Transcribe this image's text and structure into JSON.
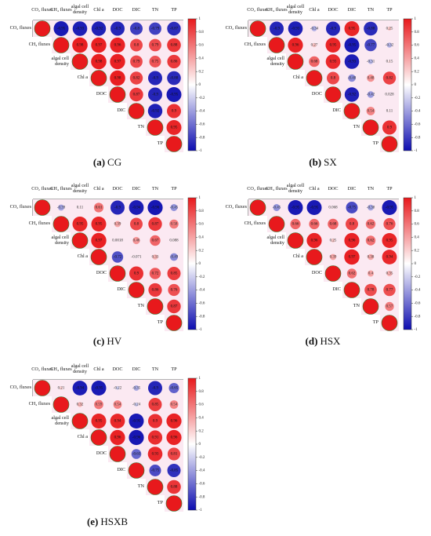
{
  "chart_data": [
    {
      "type": "corrplot",
      "panel": "(a)",
      "title": "CG",
      "variables": [
        "CO₂ fluxes",
        "CH₄ fluxes",
        "algal cell density",
        "Chl a",
        "DOC",
        "DIC",
        "TN",
        "TP"
      ],
      "values": [
        [
          1,
          -0.95,
          -0.93,
          -0.92,
          -0.9,
          -0.8,
          -0.79,
          -0.87
        ],
        [
          null,
          1,
          0.98,
          0.97,
          0.96,
          0.8,
          0.79,
          0.88
        ],
        [
          null,
          null,
          1,
          0.98,
          0.97,
          0.79,
          0.75,
          0.86
        ],
        [
          null,
          null,
          null,
          1,
          0.98,
          0.82,
          -0.9,
          -0.88
        ],
        [
          null,
          null,
          null,
          null,
          1,
          0.87,
          -0.9,
          -0.95
        ],
        [
          null,
          null,
          null,
          null,
          null,
          1,
          -0.92,
          0.9
        ],
        [
          null,
          null,
          null,
          null,
          null,
          null,
          1,
          0.95
        ],
        [
          null,
          null,
          null,
          null,
          null,
          null,
          null,
          1
        ]
      ],
      "clim": [
        -1,
        1
      ],
      "cticks": [
        1,
        0.8,
        0.6,
        0.4,
        0.2,
        0,
        -0.2,
        -0.4,
        -0.6,
        -0.8,
        -1
      ],
      "colors": {
        "positive": "#e8191c",
        "negative": "#0d0db0"
      }
    },
    {
      "type": "corrplot",
      "panel": "(b)",
      "title": "SX",
      "variables": [
        "CO₂ fluxes",
        "CH₄ fluxes",
        "algal cell density",
        "Chl a",
        "DOC",
        "DIC",
        "TN",
        "TP"
      ],
      "values": [
        [
          1,
          -0.9,
          -0.93,
          -0.34,
          -0.9,
          0.95,
          -0.88,
          0.25
        ],
        [
          null,
          1,
          0.96,
          0.27,
          0.95,
          -0.95,
          -0.77,
          -0.32
        ],
        [
          null,
          null,
          1,
          0.68,
          0.93,
          -0.93,
          -0.31,
          0.15
        ],
        [
          null,
          null,
          null,
          1,
          0.8,
          -0.48,
          0.48,
          0.82
        ],
        [
          null,
          null,
          null,
          null,
          1,
          -0.92,
          -0.42,
          0.028
        ],
        [
          null,
          null,
          null,
          null,
          null,
          1,
          0.54,
          0.11
        ],
        [
          null,
          null,
          null,
          null,
          null,
          null,
          1,
          0.9
        ],
        [
          null,
          null,
          null,
          null,
          null,
          null,
          null,
          1
        ]
      ],
      "clim": [
        -1,
        1
      ],
      "cticks": [
        1,
        0.8,
        0.6,
        0.4,
        0.2,
        0,
        -0.2,
        -0.4,
        -0.6,
        -0.8,
        -1
      ],
      "colors": {
        "positive": "#e8191c",
        "negative": "#0d0db0"
      }
    },
    {
      "type": "corrplot",
      "panel": "(c)",
      "title": "HV",
      "variables": [
        "CO₂ fluxes",
        "CH₄ fluxes",
        "algal cell density",
        "Chl a",
        "DOC",
        "DIC",
        "TN",
        "TP"
      ],
      "values": [
        [
          1,
          -0.39,
          0.11,
          0.61,
          -0.9,
          -0.94,
          -0.96,
          -0.45
        ],
        [
          null,
          1,
          0.95,
          0.95,
          0.39,
          0.8,
          0.87,
          0.58
        ],
        [
          null,
          null,
          1,
          0.97,
          0.0018,
          0.46,
          0.67,
          0.088
        ],
        [
          null,
          null,
          null,
          1,
          -0.72,
          -0.071,
          0.33,
          -0.49
        ],
        [
          null,
          null,
          null,
          null,
          1,
          0.9,
          0.72,
          0.85
        ],
        [
          null,
          null,
          null,
          null,
          null,
          1,
          0.86,
          0.76
        ],
        [
          null,
          null,
          null,
          null,
          null,
          null,
          1,
          0.87
        ],
        [
          null,
          null,
          null,
          null,
          null,
          null,
          null,
          1
        ]
      ],
      "clim": [
        -1,
        1
      ],
      "cticks": [
        1,
        0.8,
        0.6,
        0.4,
        0.2,
        0,
        -0.2,
        -0.4,
        -0.6,
        -0.8,
        -1
      ],
      "colors": {
        "positive": "#e8191c",
        "negative": "#0d0db0"
      }
    },
    {
      "type": "corrplot",
      "panel": "(d)",
      "title": "HSX",
      "variables": [
        "CO₂ fluxes",
        "CH₄ fluxes",
        "algal cell density",
        "Chl a",
        "DOC",
        "DIC",
        "TN",
        "TP"
      ],
      "values": [
        [
          1,
          -0.45,
          -0.95,
          -0.95,
          0.068,
          -0.75,
          -0.38,
          -0.95
        ],
        [
          null,
          1,
          0.66,
          0.66,
          0.68,
          0.8,
          0.62,
          0.76
        ],
        [
          null,
          null,
          1,
          0.96,
          0.25,
          0.96,
          0.62,
          0.95
        ],
        [
          null,
          null,
          null,
          1,
          0.39,
          0.97,
          0.38,
          0.94
        ],
        [
          null,
          null,
          null,
          null,
          1,
          0.62,
          0.4,
          0.35
        ],
        [
          null,
          null,
          null,
          null,
          null,
          1,
          0.78,
          0.77
        ],
        [
          null,
          null,
          null,
          null,
          null,
          null,
          1,
          0.57
        ],
        [
          null,
          null,
          null,
          null,
          null,
          null,
          null,
          1
        ]
      ],
      "clim": [
        -1,
        1
      ],
      "cticks": [
        1,
        0.8,
        0.6,
        0.4,
        0.2,
        0,
        -0.2,
        -0.4,
        -0.6,
        -0.8,
        -1
      ],
      "colors": {
        "positive": "#e8191c",
        "negative": "#0d0db0"
      }
    },
    {
      "type": "corrplot",
      "panel": "(e)",
      "title": "HSXB",
      "variables": [
        "CO₂ fluxes",
        "CH₄ fluxes",
        "algal cell density",
        "Chl a",
        "DOC",
        "DIC",
        "TN",
        "TP"
      ],
      "values": [
        [
          1,
          0.21,
          -0.94,
          -0.95,
          -0.22,
          -0.35,
          -0.9,
          -0.65
        ],
        [
          null,
          1,
          0.32,
          0.59,
          0.54,
          -0.24,
          0.85,
          0.54
        ],
        [
          null,
          null,
          1,
          0.95,
          0.94,
          -0.95,
          0.9,
          0.96
        ],
        [
          null,
          null,
          null,
          1,
          0.96,
          -0.96,
          0.91,
          0.96
        ],
        [
          null,
          null,
          null,
          null,
          1,
          -0.63,
          0.93,
          0.81
        ],
        [
          null,
          null,
          null,
          null,
          null,
          1,
          -0.75,
          -0.85
        ],
        [
          null,
          null,
          null,
          null,
          null,
          null,
          1,
          0.88
        ],
        [
          null,
          null,
          null,
          null,
          null,
          null,
          null,
          1
        ]
      ],
      "clim": [
        -1,
        1
      ],
      "cticks": [
        1,
        0.8,
        0.6,
        0.4,
        0.2,
        0,
        -0.2,
        -0.4,
        -0.6,
        -0.8,
        -1
      ],
      "colors": {
        "positive": "#e8191c",
        "negative": "#0d0db0"
      }
    }
  ]
}
